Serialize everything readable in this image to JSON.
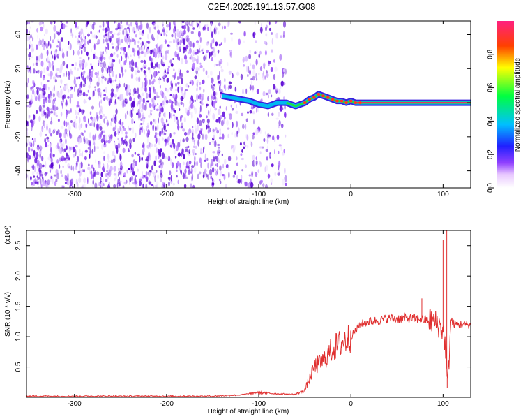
{
  "title": "C2E4.2025.191.13.57.G08",
  "chart_data": [
    {
      "type": "heatmap",
      "xlabel": "Height of straight line (km)",
      "ylabel": "Frequency (Hz)",
      "xlim": [
        -352,
        130
      ],
      "ylim": [
        -50,
        48
      ],
      "x_ticks": [
        "-300",
        "-200",
        "-100",
        "0",
        "100"
      ],
      "x_tick_values": [
        -300,
        -200,
        -100,
        0,
        100
      ],
      "y_ticks": [
        "-40",
        "-20",
        "0",
        "20",
        "40"
      ],
      "y_tick_values": [
        -40,
        -20,
        0,
        20,
        40
      ],
      "colorbar": {
        "label": "Normalized spectral amplitude",
        "range": [
          0,
          1
        ],
        "ticks": [
          "0.0",
          "0.2",
          "0.4",
          "0.6",
          "0.8"
        ],
        "tick_values": [
          0,
          0.2,
          0.4,
          0.6,
          0.8
        ]
      },
      "noise_region_x": [
        -352,
        -70
      ],
      "signal_start_x": -140,
      "signal_track": {
        "x": [
          -140,
          -130,
          -120,
          -110,
          -100,
          -90,
          -80,
          -70,
          -65,
          -60,
          -55,
          -50,
          -45,
          -40,
          -35,
          -30,
          -25,
          -20,
          -15,
          -10,
          -5,
          0,
          5,
          10,
          20,
          40,
          60,
          80,
          100,
          130
        ],
        "frequency_hz": [
          4,
          3,
          2,
          1,
          -1,
          -2,
          0,
          0,
          -1,
          -2,
          -1,
          0,
          2,
          3,
          5,
          4,
          3,
          2,
          1,
          1,
          0,
          1,
          0,
          0,
          0,
          0,
          0,
          0,
          0,
          0
        ]
      }
    },
    {
      "type": "line",
      "xlabel": "Height of straight line (km)",
      "ylabel": "SNR (10 * v/v)",
      "y_multiplier": "(x10⁴)",
      "xlim": [
        -352,
        130
      ],
      "ylim": [
        0,
        2.75
      ],
      "x_ticks": [
        "-300",
        "-200",
        "-100",
        "0",
        "100"
      ],
      "x_tick_values": [
        -300,
        -200,
        -100,
        0,
        100
      ],
      "y_ticks": [
        "0.5",
        "1.0",
        "1.5",
        "2.0",
        "2.5"
      ],
      "y_tick_values": [
        0.5,
        1.0,
        1.5,
        2.0,
        2.5
      ],
      "series": [
        {
          "color": "#e03030",
          "x": [
            -352,
            -300,
            -200,
            -150,
            -120,
            -100,
            -80,
            -60,
            -50,
            -45,
            -40,
            -35,
            -30,
            -25,
            -20,
            -15,
            -10,
            -5,
            0,
            5,
            10,
            20,
            30,
            40,
            50,
            60,
            70,
            80,
            90,
            95,
            100,
            103,
            105,
            108,
            110,
            115,
            120,
            130
          ],
          "values": [
            0.02,
            0.02,
            0.02,
            0.02,
            0.04,
            0.08,
            0.06,
            0.05,
            0.12,
            0.3,
            0.5,
            0.55,
            0.6,
            0.7,
            0.8,
            0.85,
            0.9,
            0.95,
            1.0,
            1.1,
            1.2,
            1.25,
            1.27,
            1.3,
            1.3,
            1.3,
            1.3,
            1.28,
            1.25,
            1.2,
            1.1,
            0.8,
            0.15,
            1.2,
            1.22,
            1.2,
            1.2,
            1.2
          ]
        }
      ],
      "spikes": [
        {
          "x": 77,
          "value": 1.63
        },
        {
          "x": 100,
          "value": 2.6
        },
        {
          "x": 104,
          "value": 2.75
        },
        {
          "x": 104.5,
          "value": 0.15
        }
      ]
    }
  ]
}
